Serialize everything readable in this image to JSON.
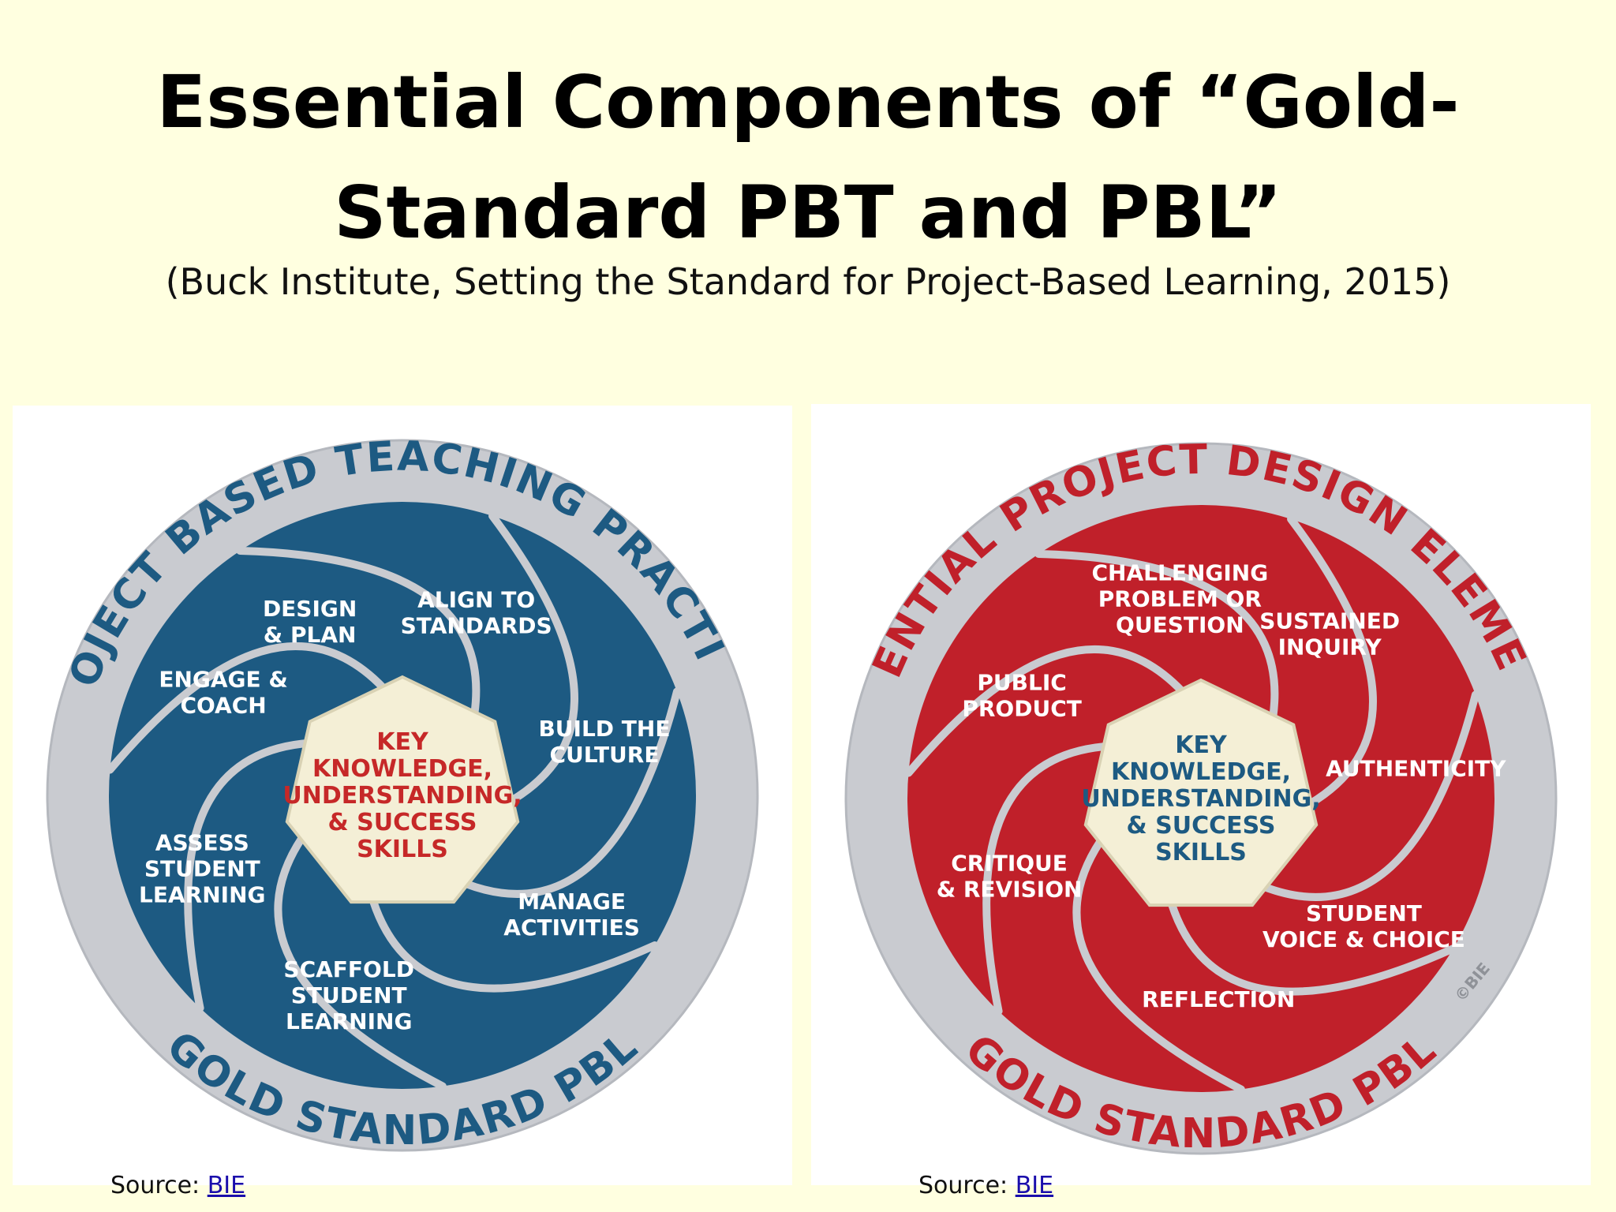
{
  "slide": {
    "title_line1": "Essential Components of “Gold-",
    "title_line2": "Standard PBT and PBL”",
    "subtitle": "(Buck Institute, Setting the Standard for Project-Based Learning, 2015)"
  },
  "left_diagram": {
    "ring_top": "PROJECT BASED TEACHING PRACTICES",
    "ring_bottom": "GOLD STANDARD PBL",
    "center": [
      "KEY",
      "KNOWLEDGE,",
      "UNDERSTANDING,",
      "& SUCCESS",
      "SKILLS"
    ],
    "segments": [
      [
        "DESIGN",
        "& PLAN"
      ],
      [
        "ALIGN TO",
        "STANDARDS"
      ],
      [
        "BUILD THE",
        "CULTURE"
      ],
      [
        "MANAGE",
        "ACTIVITIES"
      ],
      [
        "SCAFFOLD",
        "STUDENT",
        "LEARNING"
      ],
      [
        "ASSESS",
        "STUDENT",
        "LEARNING"
      ],
      [
        "ENGAGE &",
        "COACH"
      ]
    ],
    "colors": {
      "segment": "#1d5a82",
      "center_text": "#c62828"
    }
  },
  "right_diagram": {
    "ring_top": "ESSENTIAL PROJECT DESIGN ELEMENTS",
    "ring_bottom": "GOLD STANDARD PBL",
    "center": [
      "KEY",
      "KNOWLEDGE,",
      "UNDERSTANDING,",
      "& SUCCESS",
      "SKILLS"
    ],
    "segments": [
      [
        "CHALLENGING",
        "PROBLEM OR",
        "QUESTION"
      ],
      [
        "SUSTAINED",
        "INQUIRY"
      ],
      [
        "AUTHENTICITY"
      ],
      [
        "STUDENT",
        "VOICE & CHOICE"
      ],
      [
        "REFLECTION"
      ],
      [
        "CRITIQUE",
        "& REVISION"
      ],
      [
        "PUBLIC",
        "PRODUCT"
      ]
    ],
    "copyright": "©BIE",
    "colors": {
      "segment": "#c0202a",
      "center_text": "#1d5a82"
    }
  },
  "sources": {
    "left_label": "Source: ",
    "left_link": "BIE",
    "right_label": "Source: ",
    "right_link": "BIE"
  },
  "colors": {
    "background": "#ffffe0",
    "ring": "#c9cbd0",
    "center_fill": "#f4efd6"
  }
}
